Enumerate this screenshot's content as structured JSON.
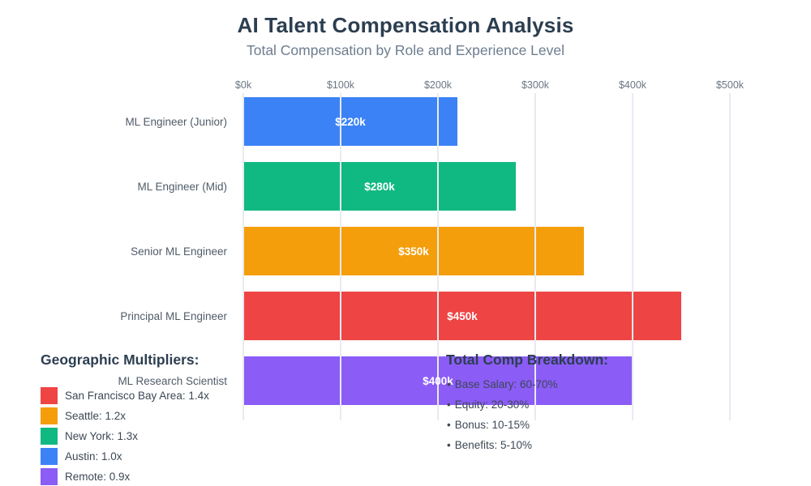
{
  "title": "AI Talent Compensation Analysis",
  "subtitle": "Total Compensation by Role and Experience Level",
  "chart_data": {
    "type": "bar",
    "orientation": "horizontal",
    "title": "AI Talent Compensation Analysis",
    "subtitle": "Total Compensation by Role and Experience Level",
    "categories": [
      "ML Engineer (Junior)",
      "ML Engineer (Mid)",
      "Senior ML Engineer",
      "Principal ML Engineer",
      "ML Research Scientist"
    ],
    "values": [
      220,
      280,
      350,
      450,
      400
    ],
    "value_labels": [
      "$220k",
      "$280k",
      "$350k",
      "$450k",
      "$400k"
    ],
    "bar_colors": [
      "#3b82f6",
      "#10b981",
      "#f59e0b",
      "#ef4444",
      "#8b5cf6"
    ],
    "units": "USD thousands per year",
    "x_ticks": [
      0,
      100,
      200,
      300,
      400,
      500
    ],
    "x_tick_labels": [
      "$0k",
      "$100k",
      "$200k",
      "$300k",
      "$400k",
      "$500k"
    ],
    "xlim": [
      0,
      533
    ],
    "grid": true,
    "legend_position": "bottom-left"
  },
  "legend": {
    "heading": "Geographic Multipliers:",
    "items": [
      {
        "label": "San Francisco Bay Area: 1.4x",
        "color": "#ef4444"
      },
      {
        "label": "Seattle: 1.2x",
        "color": "#f59e0b"
      },
      {
        "label": "New York: 1.3x",
        "color": "#10b981"
      },
      {
        "label": "Austin: 1.0x",
        "color": "#3b82f6"
      },
      {
        "label": "Remote: 0.9x",
        "color": "#8b5cf6"
      }
    ]
  },
  "breakdown": {
    "heading": "Total Comp Breakdown:",
    "bullet_char": "•",
    "items": [
      "Base Salary: 60-70%",
      "Equity: 20-30%",
      "Bonus: 10-15%",
      "Benefits: 5-10%"
    ]
  }
}
